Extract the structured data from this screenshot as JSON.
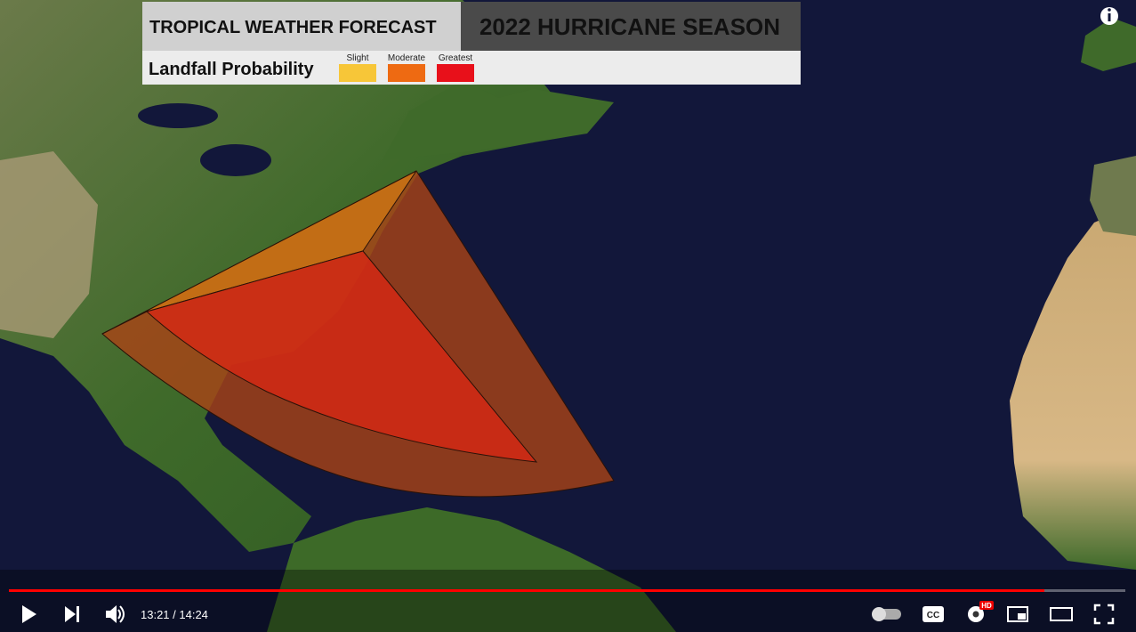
{
  "header": {
    "title": "TROPICAL WEATHER FORECAST",
    "season": "2022 HURRICANE SEASON",
    "subtitle": "Landfall Probability"
  },
  "legend": [
    {
      "label": "Slight",
      "color": "#f7c638"
    },
    {
      "label": "Moderate",
      "color": "#ee6a12"
    },
    {
      "label": "Greatest",
      "color": "#e8101a"
    }
  ],
  "controls": {
    "time": "13:21 / 14:24",
    "cc": "CC",
    "hd": "HD"
  }
}
